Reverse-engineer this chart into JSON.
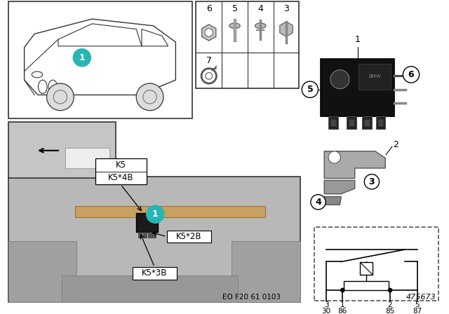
{
  "bg_color": "#ffffff",
  "teal_color": "#2ab5b5",
  "doc_number": "EO F20 61 0103",
  "part_number": "475673",
  "circuit_pins_top": [
    "3",
    "1",
    "2",
    "5"
  ],
  "circuit_pins_bot": [
    "30",
    "86",
    "85",
    "87"
  ],
  "fastener_top": [
    "6",
    "5",
    "4",
    "3"
  ],
  "fastener_bot": [
    "7"
  ]
}
